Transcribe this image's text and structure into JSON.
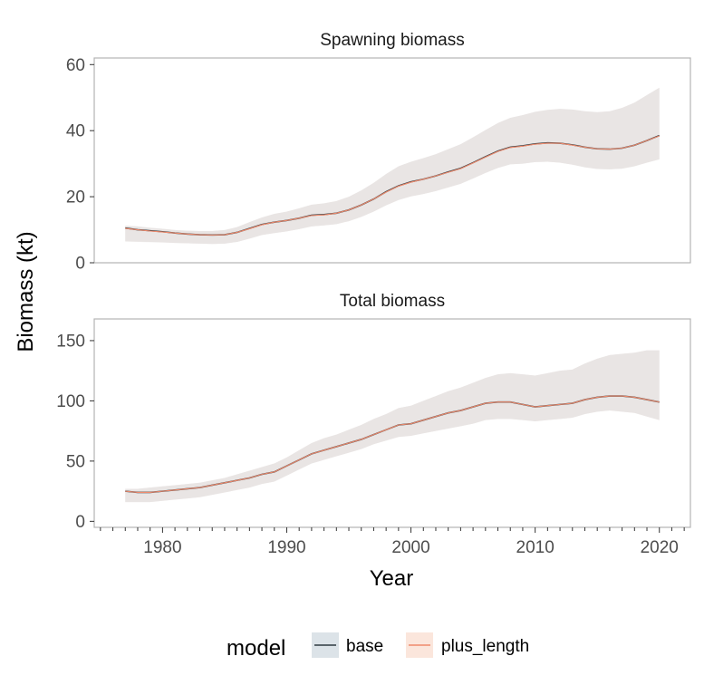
{
  "figure": {
    "y_axis_label": "Biomass (kt)",
    "x_axis_label": "Year",
    "legend": {
      "title": "model",
      "position": "bottom",
      "entries": [
        {
          "name": "base",
          "line_color": "#2f3b40",
          "fill_color": "#dce3e8"
        },
        {
          "name": "plus_length",
          "line_color": "#f08a6c",
          "fill_color": "#fbe6dc"
        }
      ]
    },
    "colors": {
      "ribbon_overlap": "#e9e5e4",
      "panel_border": "#b3b3b3",
      "axis_text": "#4d4d4d"
    }
  },
  "chart_data": [
    {
      "type": "line",
      "title": "Spawning biomass",
      "ylim": [
        0,
        62
      ],
      "yticks": [
        0,
        20,
        40,
        60
      ],
      "xlim": [
        1974.5,
        2022.5
      ],
      "xticks": [
        1980,
        1990,
        2000,
        2010,
        2020
      ],
      "grid": false,
      "x": [
        1977,
        1978,
        1979,
        1980,
        1981,
        1982,
        1983,
        1984,
        1985,
        1986,
        1987,
        1988,
        1989,
        1990,
        1991,
        1992,
        1993,
        1994,
        1995,
        1996,
        1997,
        1998,
        1999,
        2000,
        2001,
        2002,
        2003,
        2004,
        2005,
        2006,
        2007,
        2008,
        2009,
        2010,
        2011,
        2012,
        2013,
        2014,
        2015,
        2016,
        2017,
        2018,
        2019,
        2020
      ],
      "series": [
        {
          "name": "base",
          "values": [
            10.5,
            10.0,
            9.7,
            9.4,
            9.0,
            8.7,
            8.5,
            8.4,
            8.5,
            9.2,
            10.4,
            11.6,
            12.3,
            12.8,
            13.5,
            14.4,
            14.6,
            15.0,
            16.0,
            17.5,
            19.3,
            21.5,
            23.3,
            24.5,
            25.3,
            26.3,
            27.5,
            28.6,
            30.3,
            32.1,
            33.8,
            35.0,
            35.4,
            36.0,
            36.3,
            36.2,
            35.7,
            35.0,
            34.5,
            34.4,
            34.7,
            35.6,
            37.0,
            38.5
          ],
          "lower": [
            6.5,
            6.4,
            6.3,
            6.2,
            6.0,
            5.9,
            5.8,
            5.7,
            5.8,
            6.3,
            7.3,
            8.4,
            9.0,
            9.5,
            10.2,
            11.0,
            11.3,
            11.7,
            12.6,
            13.9,
            15.5,
            17.4,
            19.0,
            20.1,
            20.8,
            21.7,
            22.8,
            23.9,
            25.5,
            27.2,
            28.7,
            29.8,
            30.0,
            30.5,
            30.6,
            30.3,
            29.7,
            28.9,
            28.4,
            28.3,
            28.5,
            29.2,
            30.3,
            31.3
          ],
          "upper": [
            11.2,
            11.0,
            10.6,
            10.3,
            9.9,
            9.7,
            9.6,
            9.6,
            9.9,
            10.8,
            12.3,
            13.7,
            14.8,
            15.5,
            16.5,
            17.6,
            18.0,
            18.7,
            20.0,
            21.9,
            24.2,
            26.9,
            29.2,
            30.6,
            31.7,
            32.9,
            34.4,
            35.9,
            38.0,
            40.2,
            42.3,
            43.9,
            44.7,
            45.7,
            46.3,
            46.6,
            46.4,
            45.9,
            45.6,
            45.9,
            46.9,
            48.5,
            50.8,
            53.0
          ]
        },
        {
          "name": "plus_length",
          "values": [
            10.4,
            10.0,
            9.6,
            9.3,
            9.0,
            8.7,
            8.5,
            8.4,
            8.5,
            9.2,
            10.3,
            11.5,
            12.3,
            12.8,
            13.5,
            14.3,
            14.5,
            15.0,
            16.0,
            17.5,
            19.3,
            21.4,
            23.2,
            24.4,
            25.3,
            26.3,
            27.4,
            28.5,
            30.2,
            32.0,
            33.7,
            34.9,
            35.3,
            35.9,
            36.2,
            36.2,
            35.6,
            35.0,
            34.5,
            34.4,
            34.7,
            35.6,
            37.0,
            38.4
          ],
          "lower": [
            6.4,
            6.3,
            6.2,
            6.1,
            6.0,
            5.9,
            5.8,
            5.7,
            5.8,
            6.3,
            7.3,
            8.4,
            9.0,
            9.5,
            10.2,
            11.0,
            11.3,
            11.7,
            12.6,
            13.9,
            15.5,
            17.4,
            19.0,
            20.1,
            20.8,
            21.7,
            22.8,
            23.9,
            25.5,
            27.2,
            28.7,
            29.8,
            30.0,
            30.5,
            30.6,
            30.3,
            29.7,
            28.9,
            28.4,
            28.3,
            28.5,
            29.2,
            30.3,
            31.3
          ],
          "upper": [
            11.2,
            11.0,
            10.6,
            10.3,
            9.9,
            9.7,
            9.6,
            9.6,
            9.9,
            10.8,
            12.2,
            13.6,
            14.7,
            15.4,
            16.4,
            17.5,
            17.9,
            18.6,
            19.9,
            21.8,
            24.1,
            26.8,
            29.0,
            30.4,
            31.5,
            32.7,
            34.2,
            35.7,
            37.8,
            40.0,
            42.0,
            43.6,
            44.4,
            45.4,
            46.0,
            46.4,
            46.2,
            45.7,
            45.4,
            45.7,
            46.7,
            48.3,
            50.6,
            52.8
          ]
        }
      ]
    },
    {
      "type": "line",
      "title": "Total biomass",
      "ylim": [
        -5,
        168
      ],
      "yticks": [
        0,
        50,
        100,
        150
      ],
      "xlim": [
        1974.5,
        2022.5
      ],
      "xticks": [
        1980,
        1990,
        2000,
        2010,
        2020
      ],
      "grid": false,
      "x": [
        1977,
        1978,
        1979,
        1980,
        1981,
        1982,
        1983,
        1984,
        1985,
        1986,
        1987,
        1988,
        1989,
        1990,
        1991,
        1992,
        1993,
        1994,
        1995,
        1996,
        1997,
        1998,
        1999,
        2000,
        2001,
        2002,
        2003,
        2004,
        2005,
        2006,
        2007,
        2008,
        2009,
        2010,
        2011,
        2012,
        2013,
        2014,
        2015,
        2016,
        2017,
        2018,
        2019,
        2020
      ],
      "series": [
        {
          "name": "base",
          "values": [
            25,
            24,
            24,
            25,
            26,
            27,
            28,
            30,
            32,
            34,
            36,
            39,
            41,
            46,
            51,
            56,
            59,
            62,
            65,
            68,
            72,
            76,
            80,
            81,
            84,
            87,
            90,
            92,
            95,
            98,
            99,
            99,
            97,
            95,
            96,
            97,
            98,
            101,
            103,
            104,
            104,
            103,
            101,
            99
          ],
          "lower": [
            16,
            16,
            16,
            17,
            18,
            19,
            20,
            22,
            24,
            26,
            28,
            31,
            33,
            38,
            43,
            48,
            51,
            54,
            57,
            60,
            64,
            67,
            70,
            71,
            73,
            75,
            77,
            79,
            81,
            84,
            85,
            85,
            84,
            83,
            84,
            85,
            86,
            89,
            91,
            92,
            91,
            90,
            87,
            84
          ],
          "upper": [
            27,
            27,
            28,
            29,
            30,
            31,
            32,
            34,
            36,
            39,
            42,
            45,
            48,
            53,
            59,
            65,
            69,
            72,
            76,
            80,
            85,
            89,
            94,
            96,
            100,
            104,
            108,
            111,
            115,
            119,
            122,
            123,
            122,
            121,
            123,
            125,
            126,
            131,
            135,
            138,
            139,
            139,
            139,
            140
          ],
          "upper_plus_length": [
            27,
            27,
            28,
            29,
            30,
            31,
            32,
            34,
            36,
            39,
            42,
            45,
            48,
            53,
            59,
            65,
            69,
            72,
            76,
            80,
            85,
            89,
            94,
            96,
            100,
            104,
            108,
            111,
            115,
            119,
            122,
            123,
            122,
            121,
            123,
            125,
            126,
            131,
            135,
            138,
            139,
            140,
            142,
            142
          ]
        },
        {
          "name": "plus_length",
          "values": [
            25,
            24,
            24,
            25,
            26,
            27,
            28,
            30,
            32,
            34,
            36,
            39,
            41,
            46,
            51,
            56,
            59,
            62,
            65,
            68,
            72,
            76,
            80,
            81,
            84,
            87,
            90,
            92,
            95,
            98,
            99,
            99,
            97,
            95,
            96,
            97,
            98,
            101,
            103,
            104,
            104,
            103,
            101,
            99
          ],
          "lower": [
            16,
            16,
            16,
            17,
            18,
            19,
            20,
            22,
            24,
            26,
            28,
            31,
            33,
            38,
            43,
            48,
            51,
            54,
            57,
            60,
            64,
            67,
            70,
            71,
            73,
            75,
            77,
            79,
            81,
            84,
            85,
            85,
            84,
            83,
            84,
            85,
            86,
            89,
            91,
            92,
            91,
            90,
            87,
            84
          ],
          "upper": [
            27,
            27,
            28,
            29,
            30,
            31,
            32,
            34,
            36,
            39,
            42,
            45,
            48,
            53,
            59,
            65,
            69,
            72,
            76,
            80,
            85,
            89,
            94,
            96,
            100,
            104,
            108,
            111,
            115,
            119,
            122,
            123,
            122,
            121,
            123,
            125,
            126,
            131,
            135,
            138,
            139,
            140,
            142,
            142
          ]
        }
      ]
    }
  ]
}
